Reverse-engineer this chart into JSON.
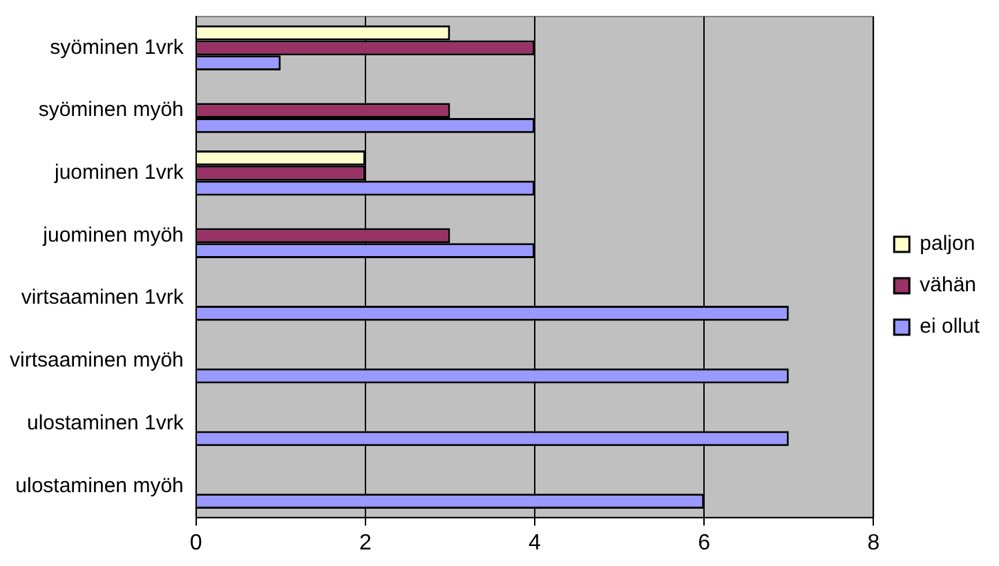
{
  "chart_data": {
    "type": "bar",
    "orientation": "horizontal",
    "categories": [
      "syöminen 1vrk",
      "syöminen myöh",
      "juominen 1vrk",
      "juominen myöh",
      "virtsaaminen 1vrk",
      "virtsaaminen myöh",
      "ulostaminen 1vrk",
      "ulostaminen myöh"
    ],
    "series": [
      {
        "name": "paljon",
        "color": "#ffffcc",
        "values": [
          3,
          null,
          2,
          null,
          null,
          null,
          null,
          null
        ]
      },
      {
        "name": "vähän",
        "color": "#993366",
        "values": [
          4,
          3,
          2,
          3,
          null,
          null,
          null,
          null
        ]
      },
      {
        "name": "ei ollut",
        "color": "#9999ff",
        "values": [
          1,
          4,
          4,
          4,
          7,
          7,
          7,
          6
        ]
      }
    ],
    "xlim": [
      0,
      8
    ],
    "xticks": [
      0,
      2,
      4,
      6,
      8
    ],
    "grid": "x",
    "legend": "right"
  }
}
